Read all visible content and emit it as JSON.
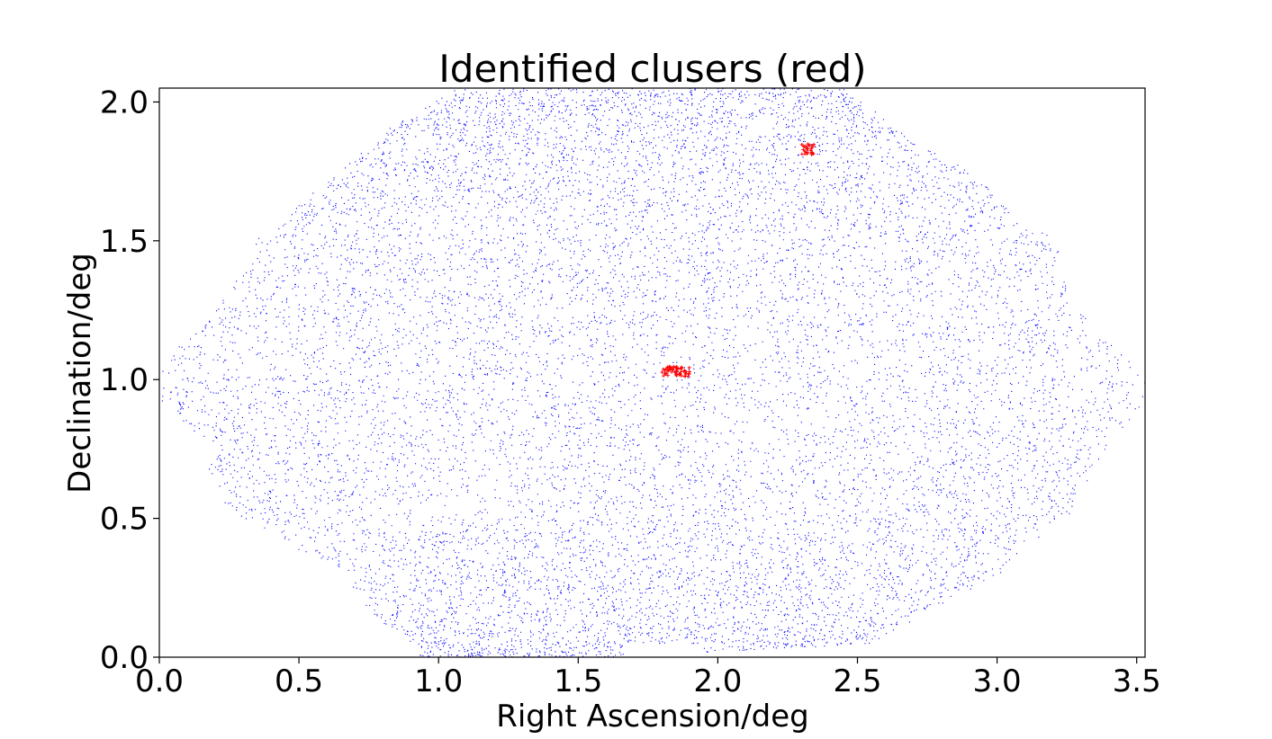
{
  "chart_data": {
    "type": "scatter",
    "title": "Identified clusers (red)",
    "xlabel": "Right Ascension/deg",
    "ylabel": "Declination/deg",
    "xlim": [
      0.0,
      3.53
    ],
    "ylim": [
      0.0,
      2.05
    ],
    "xticks": [
      "0.0",
      "0.5",
      "1.0",
      "1.5",
      "2.0",
      "2.5",
      "3.0",
      "3.5"
    ],
    "yticks": [
      "0.0",
      "0.5",
      "1.0",
      "1.5",
      "2.0"
    ],
    "grid": false,
    "legend": "none",
    "series": [
      {
        "role": "field-galaxies",
        "color": "#0000ff",
        "footprint": {
          "dec_range": [
            0.0,
            2.05
          ],
          "ra_extent_by_dec": [
            [
              0.0,
              0.94,
              1.6
            ],
            [
              0.05,
              0.93,
              2.55
            ],
            [
              0.15,
              0.75,
              2.7
            ],
            [
              0.3,
              0.68,
              3.0
            ],
            [
              0.4,
              0.48,
              3.1
            ],
            [
              0.55,
              0.23,
              3.28
            ],
            [
              0.8,
              0.15,
              3.4
            ],
            [
              0.9,
              0.0,
              3.53
            ],
            [
              1.05,
              0.0,
              3.5
            ],
            [
              1.2,
              0.15,
              3.33
            ],
            [
              1.35,
              0.28,
              3.25
            ],
            [
              1.5,
              0.35,
              3.2
            ],
            [
              1.6,
              0.45,
              3.05
            ],
            [
              1.75,
              0.65,
              2.9
            ],
            [
              1.9,
              0.82,
              2.65
            ],
            [
              2.0,
              1.0,
              2.5
            ],
            [
              2.05,
              1.08,
              2.45
            ]
          ],
          "notch": [
            1.66,
            1.95,
            0.0,
            0.05
          ],
          "holes": [
            [
              0.95,
              0.53,
              0.05,
              0.025
            ],
            [
              1.1,
              0.55,
              0.05,
              0.025
            ],
            [
              1.2,
              0.54,
              0.03,
              0.025
            ],
            [
              2.1,
              1.98,
              0.04,
              0.02
            ],
            [
              2.15,
              1.92,
              0.05,
              0.025
            ],
            [
              1.25,
              1.4,
              0.03,
              0.02
            ],
            [
              2.8,
              1.25,
              0.03,
              0.02
            ]
          ]
        }
      },
      {
        "role": "identified-clusters",
        "color": "#ff0000",
        "clusters": [
          {
            "ra": 1.85,
            "dec": 1.03,
            "spread_ra": 0.05,
            "spread_dec": 0.018,
            "count": 60
          },
          {
            "ra": 2.32,
            "dec": 1.83,
            "spread_ra": 0.025,
            "spread_dec": 0.02,
            "count": 30
          }
        ]
      }
    ]
  }
}
